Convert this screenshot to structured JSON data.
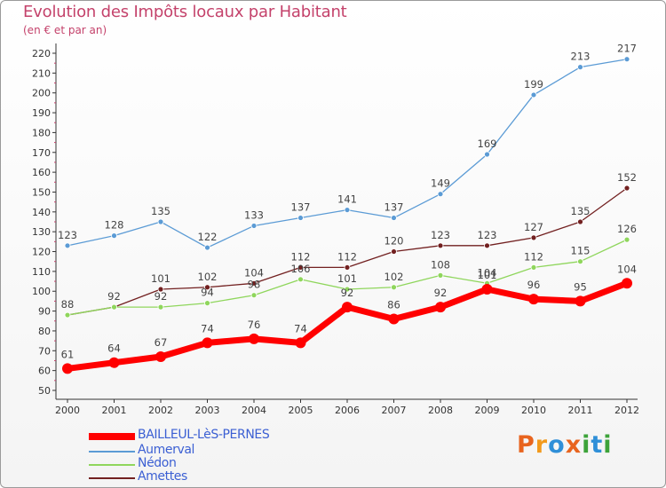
{
  "title": "Evolution des Impôts locaux par Habitant",
  "subtitle": "(en € et par an)",
  "logo": {
    "text": "Proxiti",
    "colors": [
      "#e8641e",
      "#f29a1c",
      "#2f8fd8",
      "#e8641e",
      "#3da33a",
      "#2f8fd8",
      "#3da33a"
    ]
  },
  "chart_data": {
    "type": "line",
    "x": [
      "2000",
      "2001",
      "2002",
      "2003",
      "2004",
      "2005",
      "2006",
      "2007",
      "2008",
      "2009",
      "2010",
      "2011",
      "2012"
    ],
    "ylim": [
      50,
      220
    ],
    "yticks": [
      50,
      60,
      70,
      80,
      90,
      100,
      110,
      120,
      130,
      140,
      150,
      160,
      170,
      180,
      190,
      200,
      210,
      220
    ],
    "grid": false,
    "legend_position": "bottom-left",
    "series": [
      {
        "name": "Aumerval",
        "color": "#5b9bd5",
        "values": [
          123,
          128,
          135,
          122,
          133,
          137,
          141,
          137,
          149,
          169,
          199,
          213,
          217
        ]
      },
      {
        "name": "Amettes",
        "color": "#722020",
        "values": [
          88,
          92,
          101,
          102,
          104,
          112,
          112,
          120,
          123,
          123,
          127,
          135,
          152
        ]
      },
      {
        "name": "Nédon",
        "color": "#8fd65c",
        "values": [
          88,
          92,
          92,
          94,
          98,
          106,
          101,
          102,
          108,
          104,
          112,
          115,
          126
        ]
      },
      {
        "name": "BAILLEUL-LèS-PERNES",
        "color": "#ff0000",
        "values": [
          61,
          64,
          67,
          74,
          76,
          74,
          92,
          86,
          92,
          101,
          96,
          95,
          104
        ]
      }
    ],
    "data_labels": {
      "Aumerval": [
        "123",
        "128",
        "135",
        "122",
        "133",
        "137",
        "141",
        "137",
        "149",
        "169",
        "199",
        "213",
        "217"
      ],
      "Amettes": [
        "88",
        "92",
        "101",
        "102",
        "104",
        "112",
        "112",
        "120",
        "123",
        "123",
        "127",
        "135",
        "152"
      ],
      "Nédon": [
        "",
        "",
        "92",
        "94",
        "98",
        "106",
        "101",
        "102",
        "108",
        "104",
        "112",
        "115",
        "126"
      ],
      "BAILLEUL-LèS-PERNES": [
        "61",
        "64",
        "67",
        "74",
        "76",
        "74",
        "92",
        "86",
        "92",
        "101",
        "96",
        "95",
        "104"
      ]
    },
    "legend_order": [
      "BAILLEUL-LèS-PERNES",
      "Aumerval",
      "Nédon",
      "Amettes"
    ]
  }
}
